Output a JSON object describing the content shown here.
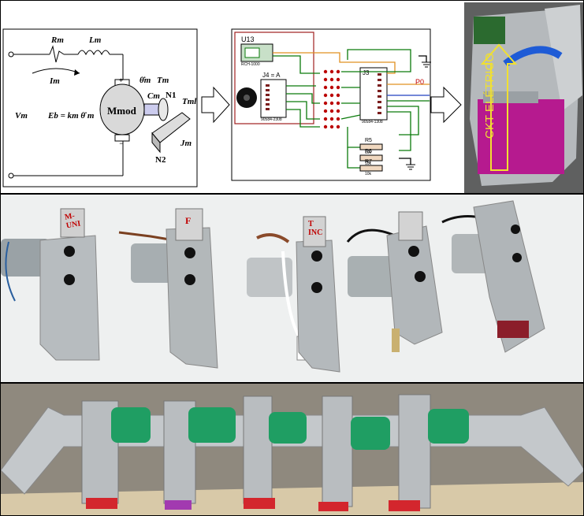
{
  "schematic": {
    "rm": "Rm",
    "lm": "Lm",
    "im": "Im",
    "vm": "Vm",
    "eb": "Eb = km θ̇ m",
    "theta": "θ̇m",
    "tm": "Tm",
    "mmod": "Mmod",
    "cm": "Cm",
    "n1": "N1",
    "n2": "N2",
    "tml": "Tml",
    "jm": "Jm",
    "plus": "+",
    "minus": "−"
  },
  "circuit": {
    "u13": "U13",
    "u13_part": "RCH-1000",
    "j4": "J4 = A",
    "j4_part": "90584-2308",
    "j3": "J3",
    "j3_part": "90584-1308",
    "p0": "P0",
    "r5": "R5",
    "r5_val": "10k",
    "r6": "R6",
    "r6_val": "10k",
    "r7": "R7",
    "r7_val": "10k"
  },
  "photo_label": "CKT ELÉTRICO",
  "hand_labels": [
    "M-\nUNI",
    "F",
    "T\nINC"
  ],
  "colors": {
    "arrow": "#f0e030",
    "wire_red": "#c00000",
    "wire_green": "#0a7a0a",
    "circuit_border": "#a02020"
  }
}
